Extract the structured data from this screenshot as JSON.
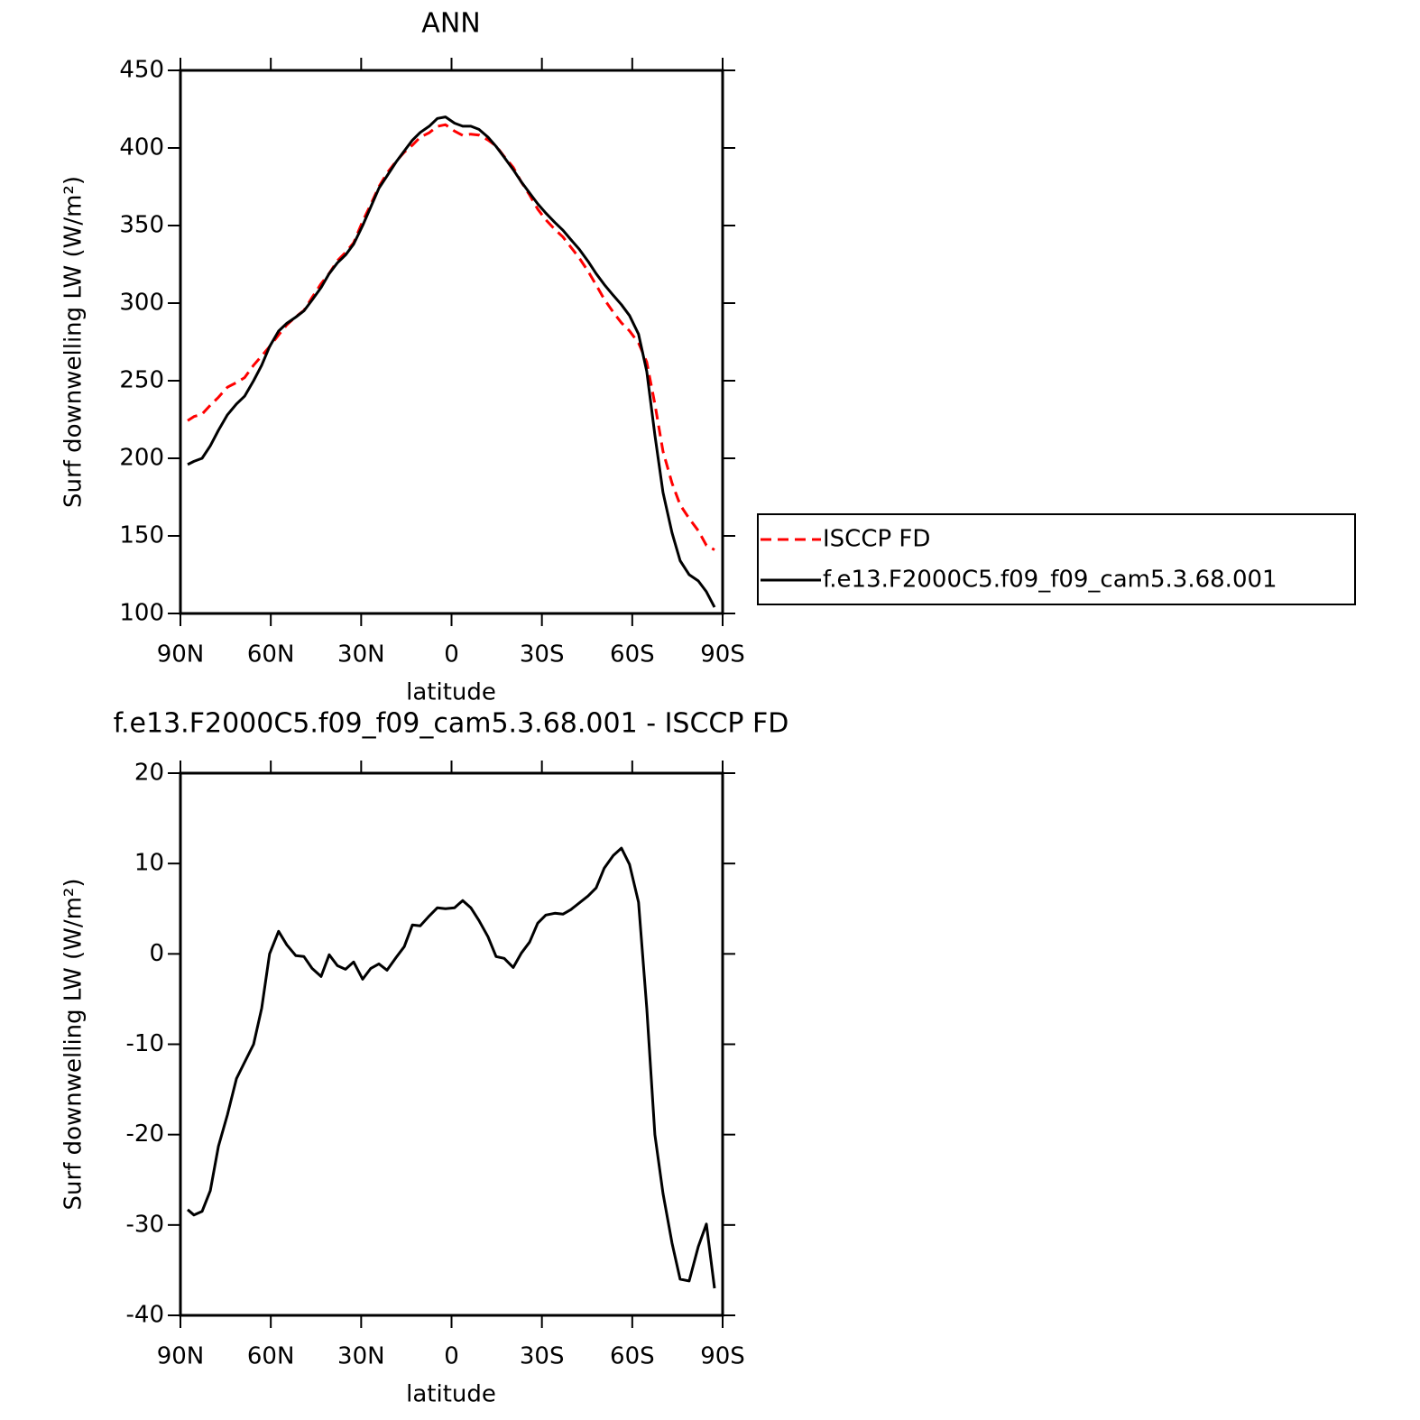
{
  "chart_data": [
    {
      "type": "line",
      "title": "ANN",
      "xlabel": "latitude",
      "ylabel": "Surf downwelling LW (W/m²)",
      "x": [
        87.6,
        85.5,
        82.8,
        80.1,
        77.4,
        74.4,
        71.4,
        68.7,
        65.7,
        63,
        60.4,
        57.4,
        54.7,
        51.7,
        49,
        46.3,
        43.3,
        40.6,
        37.9,
        35.2,
        32.5,
        29.5,
        26.8,
        24.1,
        21.4,
        18.4,
        15.7,
        13,
        10.4,
        7.4,
        4.7,
        2,
        -1,
        -3.7,
        -6.4,
        -9.1,
        -12.1,
        -14.8,
        -17.5,
        -20.5,
        -23.2,
        -25.9,
        -28.6,
        -31.3,
        -34.3,
        -37,
        -39.6,
        -42.3,
        -45.3,
        -48,
        -50.7,
        -53.7,
        -56.4,
        -59.1,
        -62.1,
        -64.8,
        -67.5,
        -70.2,
        -73.2,
        -75.9,
        -78.9,
        -81.9,
        -84.6,
        -87.3
      ],
      "series": [
        {
          "name": "ISCCP FD",
          "color": "#ff0000",
          "linestyle": "dashed",
          "values": [
            224.3,
            226.9,
            228.5,
            234.2,
            239.3,
            245.8,
            248.8,
            252,
            260,
            266,
            272,
            279.5,
            286,
            291.2,
            295.3,
            303.6,
            312.5,
            319.1,
            327.3,
            332.7,
            338.9,
            352.8,
            363.6,
            375.1,
            383.8,
            391.4,
            397.2,
            401.8,
            406.9,
            409.8,
            413.9,
            415,
            410.9,
            408.1,
            408.9,
            408.3,
            405.1,
            401.3,
            394.5,
            387.5,
            377.9,
            369.7,
            360.6,
            353.7,
            347.5,
            342.6,
            336.1,
            329.4,
            320.6,
            311.7,
            302.5,
            294.1,
            287.3,
            282.1,
            274.3,
            262,
            235,
            204.5,
            184,
            170,
            161.2,
            153.4,
            143.9,
            141
          ]
        },
        {
          "name": "f.e13.F2000C5.f09_f09_cam5.3.68.001",
          "color": "#000000",
          "linestyle": "solid",
          "values": [
            196,
            198,
            200,
            208,
            218,
            228,
            235,
            240,
            250,
            260,
            272,
            282,
            287,
            291,
            295,
            302,
            310,
            319,
            326,
            331,
            338,
            350,
            362,
            374,
            382,
            391,
            398,
            405,
            410,
            414,
            419,
            420,
            416,
            414,
            414,
            412,
            407,
            401,
            394,
            386,
            378,
            371,
            364,
            358,
            352,
            347,
            341,
            335,
            327,
            319,
            312,
            305,
            299,
            292,
            280,
            256,
            215,
            178,
            152,
            134,
            125,
            121,
            114,
            104
          ]
        }
      ],
      "xlim": [
        90,
        -90
      ],
      "xticks": [
        {
          "value": 90,
          "label": "90N"
        },
        {
          "value": 60,
          "label": "60N"
        },
        {
          "value": 30,
          "label": "30N"
        },
        0,
        {
          "value": -30,
          "label": "30S"
        },
        {
          "value": -60,
          "label": "60S"
        },
        {
          "value": -90,
          "label": "90S"
        }
      ],
      "ylim": [
        100,
        450
      ],
      "yticks": [
        100,
        150,
        200,
        250,
        300,
        350,
        400,
        450
      ],
      "legend": "right"
    },
    {
      "type": "line",
      "title": "f.e13.F2000C5.f09_f09_cam5.3.68.001 - ISCCP FD",
      "xlabel": "latitude",
      "ylabel": "Surf downwelling LW (W/m²)",
      "x": [
        87.6,
        85.5,
        82.8,
        80.1,
        77.4,
        74.4,
        71.4,
        68.7,
        65.7,
        63,
        60.4,
        57.4,
        54.7,
        51.7,
        49,
        46.3,
        43.3,
        40.6,
        37.9,
        35.2,
        32.5,
        29.5,
        26.8,
        24.1,
        21.4,
        18.4,
        15.7,
        13,
        10.4,
        7.4,
        4.7,
        2,
        -1,
        -3.7,
        -6.4,
        -9.1,
        -12.1,
        -14.8,
        -17.5,
        -20.5,
        -23.2,
        -25.9,
        -28.6,
        -31.3,
        -34.3,
        -37,
        -39.6,
        -42.3,
        -45.3,
        -48,
        -50.7,
        -53.7,
        -56.4,
        -59.1,
        -62.1,
        -64.8,
        -67.5,
        -70.2,
        -73.2,
        -75.9,
        -78.9,
        -81.9,
        -84.6,
        -87.3
      ],
      "series": [
        {
          "color": "#000000",
          "linestyle": "solid",
          "values": [
            -28.3,
            -28.9,
            -28.5,
            -26.2,
            -21.3,
            -17.8,
            -13.8,
            -12,
            -10,
            -6,
            0,
            2.5,
            1,
            -0.2,
            -0.3,
            -1.6,
            -2.5,
            -0.1,
            -1.3,
            -1.7,
            -0.9,
            -2.8,
            -1.6,
            -1.1,
            -1.8,
            -0.4,
            0.8,
            3.2,
            3.1,
            4.2,
            5.1,
            5,
            5.1,
            5.9,
            5.1,
            3.7,
            1.9,
            -0.3,
            -0.5,
            -1.5,
            0.1,
            1.3,
            3.4,
            4.3,
            4.5,
            4.4,
            4.9,
            5.6,
            6.4,
            7.3,
            9.5,
            10.9,
            11.7,
            9.9,
            5.7,
            -6,
            -20,
            -26.5,
            -32,
            -36,
            -36.2,
            -32.4,
            -29.9,
            -37
          ]
        }
      ],
      "xlim": [
        90,
        -90
      ],
      "xticks": [
        {
          "value": 90,
          "label": "90N"
        },
        {
          "value": 60,
          "label": "60N"
        },
        {
          "value": 30,
          "label": "30N"
        },
        0,
        {
          "value": -30,
          "label": "30S"
        },
        {
          "value": -60,
          "label": "60S"
        },
        {
          "value": -90,
          "label": "90S"
        }
      ],
      "ylim": [
        -40,
        20
      ],
      "yticks": [
        -40,
        -30,
        -20,
        -10,
        0,
        10,
        20
      ]
    }
  ]
}
